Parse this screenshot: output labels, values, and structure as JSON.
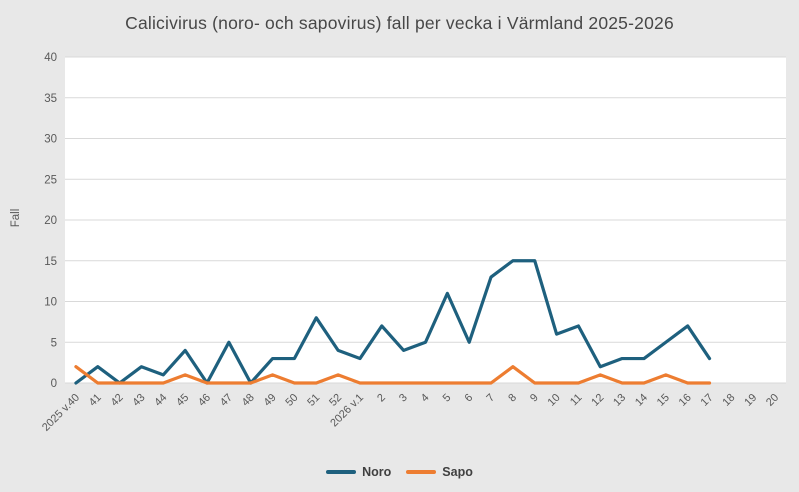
{
  "title": "Calicivirus (noro- och sapovirus) fall per vecka i Värmland 2025-2026",
  "y_axis": {
    "label": "Fall",
    "ticks": [
      0,
      5,
      10,
      15,
      20,
      25,
      30,
      35,
      40
    ]
  },
  "colors": {
    "background": "#e8e8e8",
    "plot_background": "#ffffff",
    "gridline": "#d9d9d9",
    "tick_label": "#595959",
    "title_text": "#474747",
    "noro": "#1e607e",
    "sapo": "#ed7d31"
  },
  "chart_data": {
    "type": "line",
    "title": "Calicivirus (noro- och sapovirus) fall per vecka i Värmland 2025-2026",
    "xlabel": "",
    "ylabel": "Fall",
    "ylim": [
      0,
      40
    ],
    "ytick_step": 5,
    "grid": true,
    "legend_position": "bottom",
    "categories": [
      "2025 v.40",
      "41",
      "42",
      "43",
      "44",
      "45",
      "46",
      "47",
      "48",
      "49",
      "50",
      "51",
      "52",
      "2026 v.1",
      "2",
      "3",
      "4",
      "5",
      "6",
      "7",
      "8",
      "9",
      "10",
      "11",
      "12",
      "13",
      "14",
      "15",
      "16",
      "17",
      "18",
      "19",
      "20"
    ],
    "series": [
      {
        "name": "Noro",
        "color": "#1e607e",
        "values": [
          0,
          2,
          0,
          2,
          1,
          4,
          0,
          5,
          0,
          3,
          3,
          8,
          4,
          3,
          7,
          4,
          5,
          11,
          5,
          13,
          15,
          15,
          6,
          7,
          2,
          3,
          3,
          5,
          7,
          3,
          null,
          null,
          null
        ]
      },
      {
        "name": "Sapo",
        "color": "#ed7d31",
        "values": [
          2,
          0,
          0,
          0,
          0,
          1,
          0,
          0,
          0,
          1,
          0,
          0,
          1,
          0,
          0,
          0,
          0,
          0,
          0,
          0,
          2,
          0,
          0,
          0,
          1,
          0,
          0,
          1,
          0,
          0,
          null,
          null,
          null
        ]
      }
    ]
  }
}
